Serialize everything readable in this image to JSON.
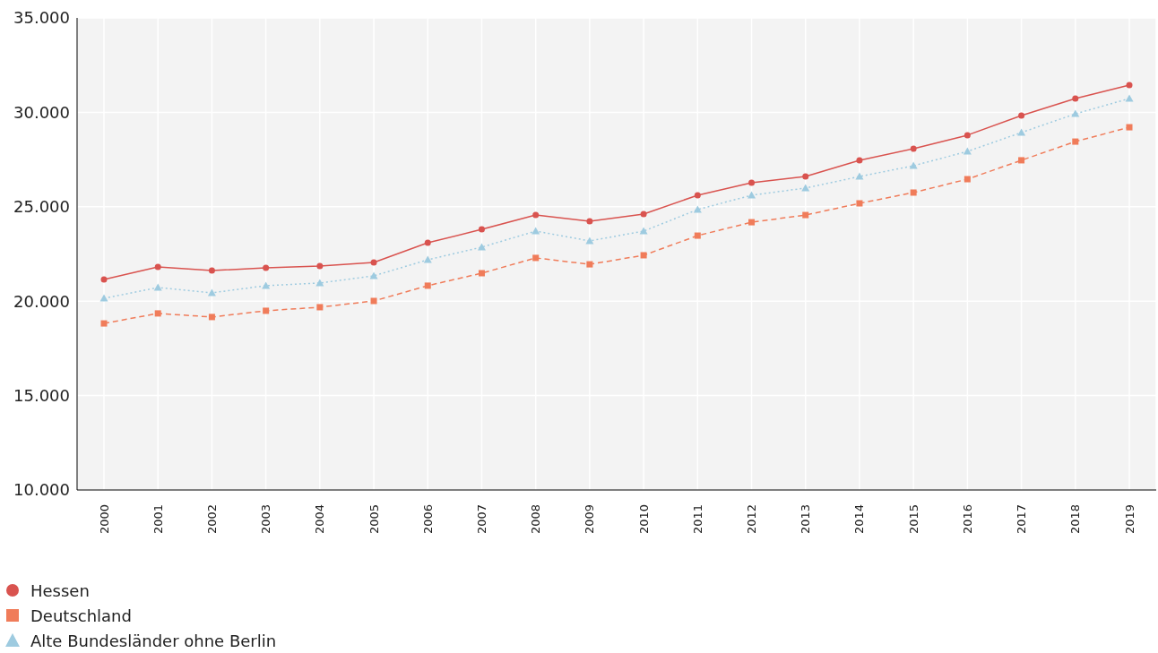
{
  "chart_data": {
    "type": "line",
    "categories": [
      "2000",
      "2001",
      "2002",
      "2003",
      "2004",
      "2005",
      "2006",
      "2007",
      "2008",
      "2009",
      "2010",
      "2011",
      "2012",
      "2013",
      "2014",
      "2015",
      "2016",
      "2017",
      "2018",
      "2019"
    ],
    "series": [
      {
        "name": "Hessen",
        "color": "#d9534f",
        "marker": "circle",
        "line_style": "solid",
        "values": [
          21150,
          21810,
          21620,
          21760,
          21860,
          22050,
          23090,
          23800,
          24560,
          24230,
          24610,
          25610,
          26270,
          26600,
          27460,
          28070,
          28790,
          29830,
          30730,
          31440
        ]
      },
      {
        "name": "Deutschland",
        "color": "#f07c5a",
        "marker": "square",
        "line_style": "dashed",
        "values": [
          18820,
          19350,
          19160,
          19490,
          19680,
          20010,
          20820,
          21480,
          22290,
          21950,
          22430,
          23470,
          24180,
          24560,
          25180,
          25750,
          26460,
          27460,
          28450,
          29210
        ]
      },
      {
        "name": "Alte Bundesländer ohne Berlin",
        "color": "#9ecbe0",
        "marker": "triangle",
        "line_style": "dotted",
        "values": [
          20150,
          20720,
          20440,
          20820,
          20960,
          21340,
          22190,
          22860,
          23710,
          23190,
          23710,
          24850,
          25610,
          25990,
          26600,
          27170,
          27930,
          28930,
          29920,
          30730
        ]
      }
    ],
    "ylim": [
      10000,
      35000
    ],
    "yticks": [
      {
        "value": 10000,
        "label": "10.000"
      },
      {
        "value": 15000,
        "label": "15.000"
      },
      {
        "value": 20000,
        "label": "20.000"
      },
      {
        "value": 25000,
        "label": "25.000"
      },
      {
        "value": 30000,
        "label": "30.000"
      },
      {
        "value": 35000,
        "label": "35.000"
      }
    ],
    "grid": true,
    "legend": "bottom left"
  }
}
